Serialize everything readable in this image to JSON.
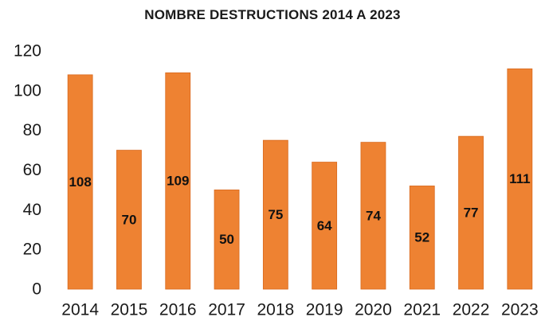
{
  "chart_data": {
    "type": "bar",
    "title": "NOMBRE DESTRUCTIONS 2014 A 2023",
    "xlabel": "",
    "ylabel": "",
    "categories": [
      "2014",
      "2015",
      "2016",
      "2017",
      "2018",
      "2019",
      "2020",
      "2021",
      "2022",
      "2023"
    ],
    "values": [
      108,
      70,
      109,
      50,
      75,
      64,
      74,
      52,
      77,
      111
    ],
    "ylim": [
      0,
      120
    ],
    "yticks": [
      0,
      20,
      40,
      60,
      80,
      100,
      120
    ],
    "grid": false,
    "legend": "none",
    "data_labels": true,
    "colors": {
      "bar": "#EE8232",
      "bar_edge": "#D96A1E",
      "text": "#1a1a1a"
    }
  }
}
